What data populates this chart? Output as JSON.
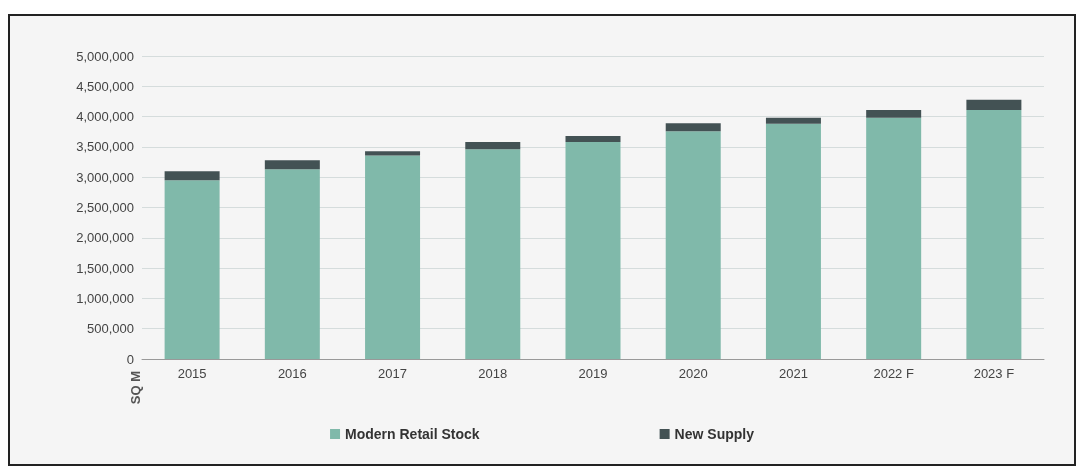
{
  "chart_data": {
    "type": "bar",
    "stacked": true,
    "ylabel": "SQ M",
    "categories": [
      "2015",
      "2016",
      "2017",
      "2018",
      "2019",
      "2020",
      "2021",
      "2022 F",
      "2023 F"
    ],
    "series": [
      {
        "name": "Modern Retail Stock",
        "color": "#80b9aa",
        "values": [
          2950000,
          3130000,
          3360000,
          3460000,
          3580000,
          3760000,
          3880000,
          3980000,
          4110000
        ]
      },
      {
        "name": "New Supply",
        "color": "#435254",
        "values": [
          150000,
          150000,
          70000,
          120000,
          100000,
          130000,
          100000,
          130000,
          170000
        ]
      }
    ],
    "ylim": [
      0,
      5000000
    ],
    "yticks": [
      0,
      {
        "value": 500000,
        "label": "500,000"
      },
      {
        "value": 1000000,
        "label": "1,000,000"
      },
      {
        "value": 1500000,
        "label": "1,500,000"
      },
      {
        "value": 2000000,
        "label": "2,000,000"
      },
      {
        "value": 2500000,
        "label": "2,500,000"
      },
      {
        "value": 3000000,
        "label": "3,000,000"
      },
      {
        "value": 3500000,
        "label": "3,500,000"
      },
      {
        "value": 4000000,
        "label": "4,000,000"
      },
      {
        "value": 4500000,
        "label": "4,500,000"
      },
      {
        "value": 5000000,
        "label": "5,000,000"
      }
    ],
    "grid": "y",
    "legend": "bottom"
  }
}
